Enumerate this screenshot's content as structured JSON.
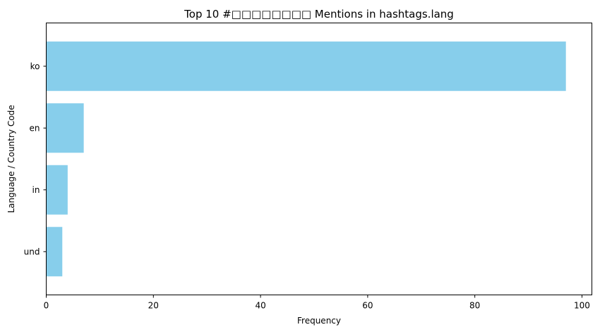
{
  "chart_data": {
    "type": "bar",
    "orientation": "horizontal",
    "title": "Top 10 #□□□□□□□□ Mentions in hashtags.lang",
    "xlabel": "Frequency",
    "ylabel": "Language / Country Code",
    "categories": [
      "ko",
      "en",
      "in",
      "und"
    ],
    "values": [
      97,
      7,
      4,
      3
    ],
    "xlim": [
      0,
      101.85
    ],
    "xticks": [
      0,
      20,
      40,
      60,
      80,
      100
    ],
    "bar_color": "#87ceeb",
    "grid": false
  }
}
